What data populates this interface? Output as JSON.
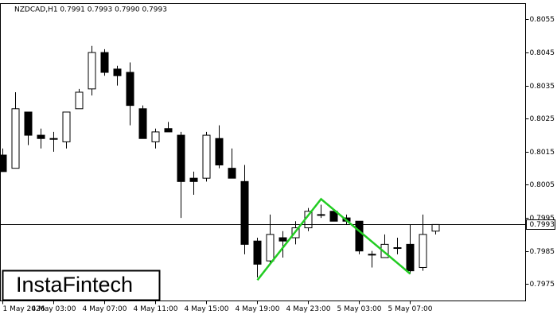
{
  "chart_data": {
    "type": "candlestick",
    "title": "NZDCAD,H1  0.7991 0.7993 0.7990 0.7993",
    "watermark": "InstaFintech",
    "categories": [
      "1 May 2026",
      null,
      null,
      null,
      "4 May 03:00",
      null,
      null,
      null,
      "4 May 07:00",
      null,
      null,
      null,
      "4 May 11:00",
      null,
      null,
      null,
      "4 May 15:00",
      null,
      null,
      null,
      "4 May 19:00",
      null,
      null,
      null,
      "4 May 23:00",
      null,
      null,
      null,
      "5 May 03:00",
      null,
      null,
      null,
      "5 May 07:00",
      null,
      null
    ],
    "open": [
      0.8014,
      0.801,
      0.8027,
      0.802,
      0.8019,
      0.8018,
      0.8028,
      0.8034,
      0.8045,
      0.804,
      0.8039,
      0.8028,
      0.8018,
      0.8022,
      0.802,
      0.8007,
      0.8007,
      0.8019,
      0.801,
      0.8006,
      0.7988,
      0.7982,
      0.7989,
      0.7989,
      0.7992,
      0.7996,
      0.7997,
      0.7995,
      0.7994,
      0.7984,
      0.7983,
      0.7986,
      0.7987,
      0.798,
      0.7991
    ],
    "high": [
      0.8016,
      0.8033,
      0.8027,
      0.8022,
      0.8021,
      0.8027,
      0.8034,
      0.8047,
      0.8046,
      0.8041,
      0.8042,
      0.8029,
      0.8022,
      0.8024,
      0.8021,
      0.8009,
      0.8021,
      0.8023,
      0.8016,
      0.8011,
      0.7989,
      0.7996,
      0.7991,
      0.7994,
      0.7998,
      0.7999,
      0.7997,
      0.7996,
      0.7994,
      0.7985,
      0.799,
      0.7989,
      0.7993,
      0.7996,
      0.7993
    ],
    "low": [
      0.8009,
      0.801,
      0.8017,
      0.8016,
      0.8015,
      0.8016,
      0.8028,
      0.8032,
      0.8038,
      0.8035,
      0.8023,
      0.8019,
      0.8016,
      0.8021,
      0.7995,
      0.8002,
      0.8006,
      0.801,
      0.8007,
      0.7984,
      0.7977,
      0.7981,
      0.7983,
      0.7987,
      0.7991,
      0.7995,
      0.7994,
      0.7993,
      0.7984,
      0.798,
      0.7983,
      0.7984,
      0.7978,
      0.7979,
      0.799
    ],
    "close": [
      0.8009,
      0.8028,
      0.802,
      0.8019,
      0.8019,
      0.8027,
      0.8033,
      0.8045,
      0.8039,
      0.8038,
      0.8029,
      0.8019,
      0.8021,
      0.8021,
      0.8006,
      0.8006,
      0.802,
      0.8011,
      0.8007,
      0.7987,
      0.7981,
      0.799,
      0.7988,
      0.7992,
      0.7997,
      0.7996,
      0.7994,
      0.7994,
      0.7985,
      0.7984,
      0.7987,
      0.7986,
      0.7979,
      0.799,
      0.7993
    ],
    "up_color": "#ffffff",
    "down_color": "#000000",
    "ylim": [
      0.79699,
      0.80598
    ],
    "yticks": [
      0.7975,
      0.7985,
      0.7995,
      0.8005,
      0.8015,
      0.8025,
      0.8035,
      0.8045,
      0.8055
    ],
    "last_price": 0.7993,
    "pattern_line": {
      "color": "#22cc22",
      "x": [
        20,
        25,
        32
      ],
      "y": [
        0.79762,
        0.80007,
        0.79781
      ]
    }
  }
}
